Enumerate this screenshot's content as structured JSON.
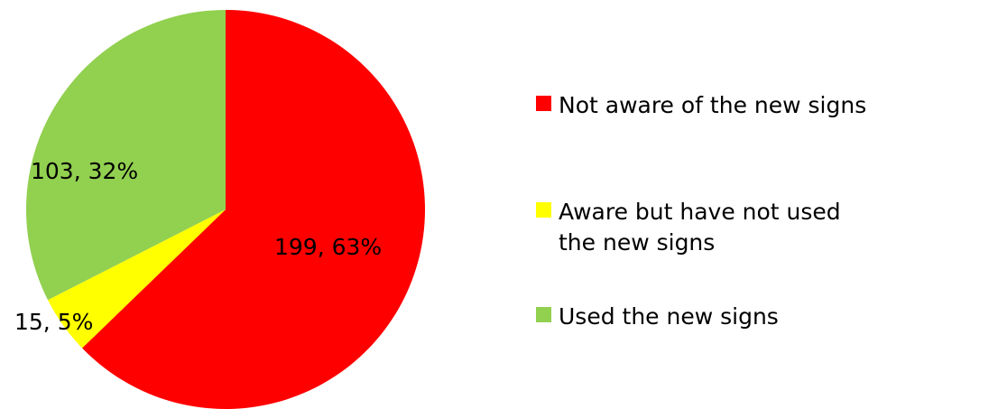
{
  "chart_data": {
    "type": "pie",
    "title": "",
    "slices": [
      {
        "name": "Not aware of the new signs",
        "value": 199,
        "percent": "63%",
        "label": "199, 63%",
        "color": "#ff0000"
      },
      {
        "name": "Aware but have not used\nthe new signs",
        "value": 15,
        "percent": "5%",
        "label": "15, 5%",
        "color": "#ffff00"
      },
      {
        "name": "Used the new signs",
        "value": 103,
        "percent": "32%",
        "label": "103, 32%",
        "color": "#92d050"
      }
    ],
    "start_angle": "12 o'clock",
    "direction": "clockwise",
    "legend": "right"
  }
}
